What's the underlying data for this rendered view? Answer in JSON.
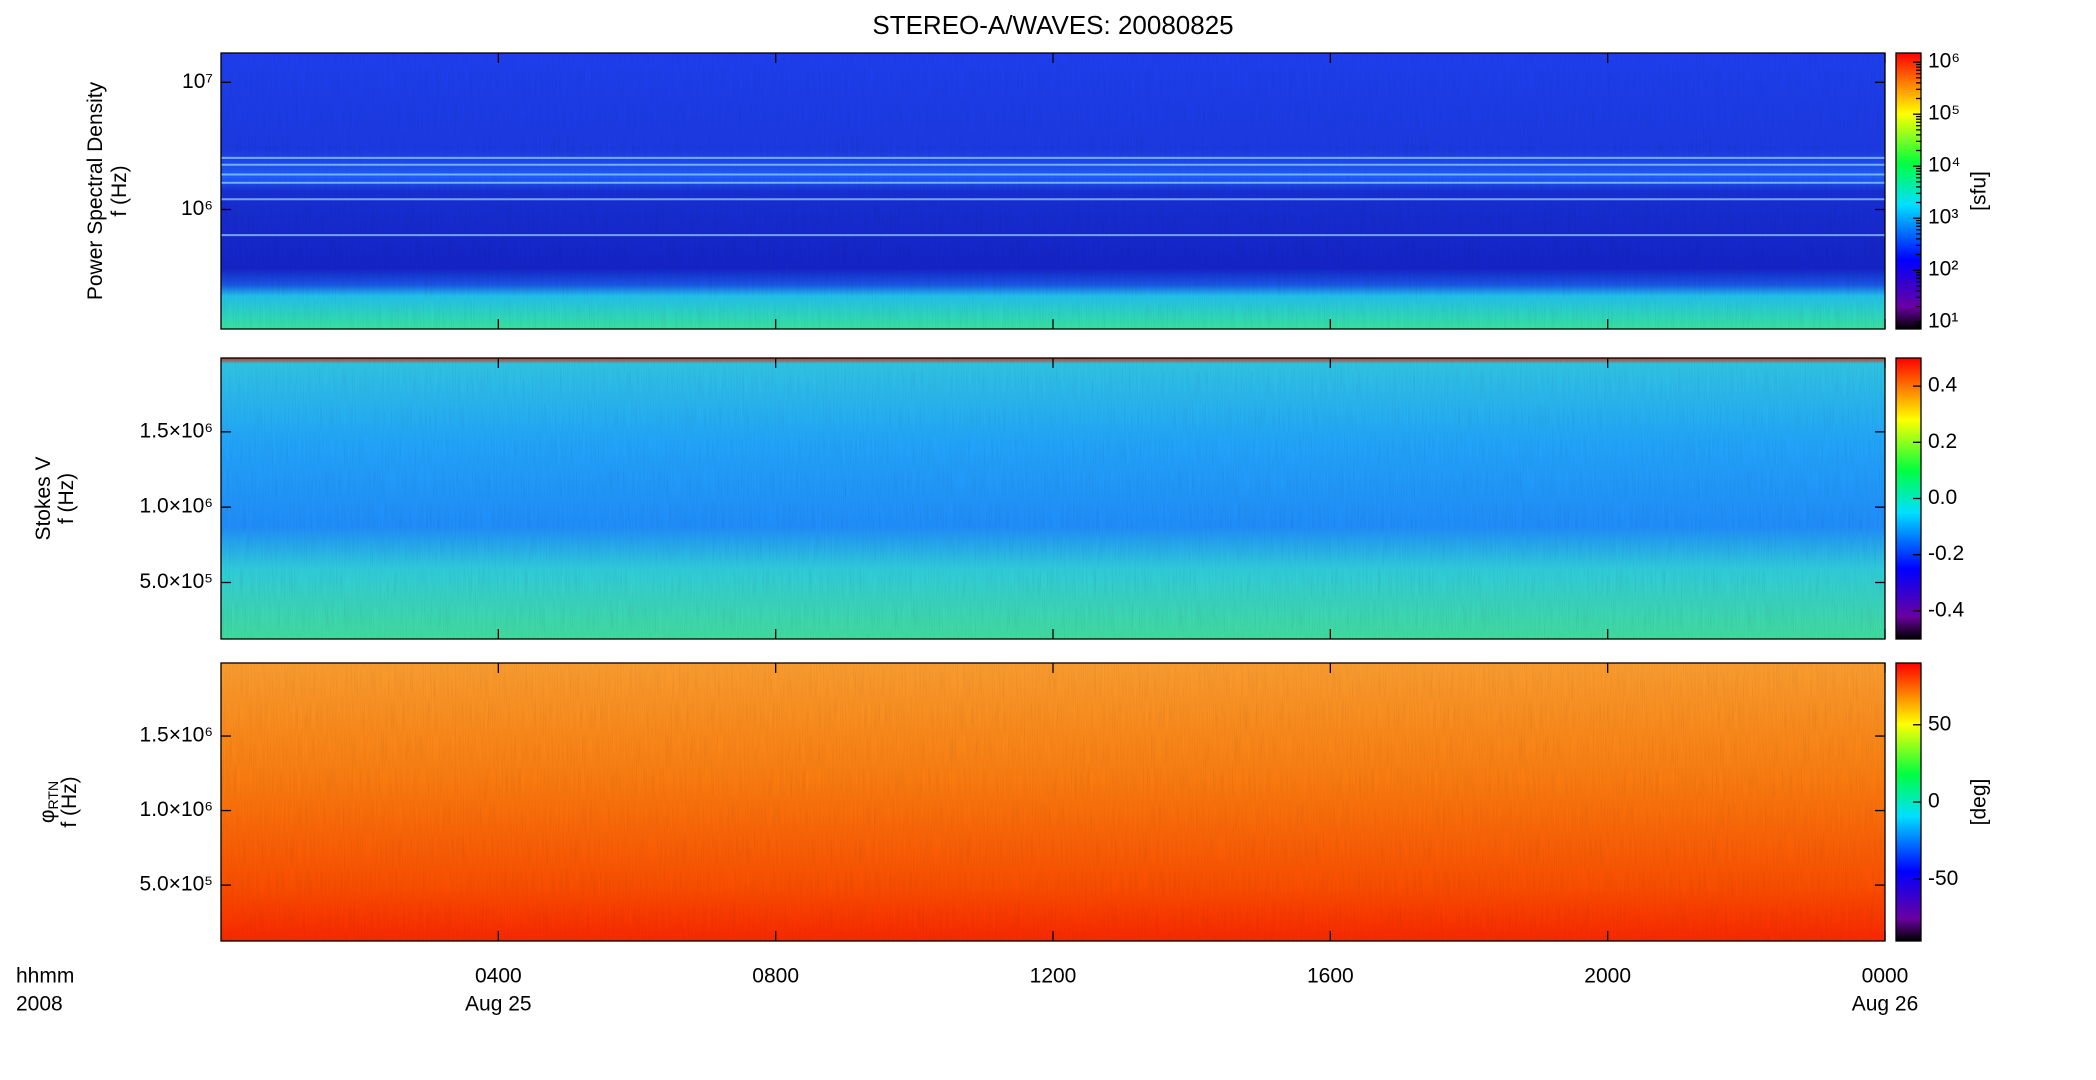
{
  "chart_data": [
    {
      "type": "spectrogram",
      "title": "STEREO-A/WAVES: 20080825",
      "ylabel": [
        "Power Spectral Density",
        "f (Hz)"
      ],
      "ylog": true,
      "ylim": [
        115000,
        17000000
      ],
      "yticks": [
        {
          "value": 1000000,
          "label": "10⁶"
        },
        {
          "value": 10000000,
          "label": "10⁷"
        }
      ],
      "colorbar": {
        "label": "[sfu]",
        "log": true,
        "lim": [
          7.4,
          1500000
        ],
        "ticks": [
          {
            "value": 10,
            "label": "10¹"
          },
          {
            "value": 100,
            "label": "10²"
          },
          {
            "value": 1000,
            "label": "10³"
          },
          {
            "value": 10000,
            "label": "10⁴"
          },
          {
            "value": 100000,
            "label": "10⁵"
          },
          {
            "value": 1000000,
            "label": "10⁶"
          }
        ]
      }
    },
    {
      "type": "spectrogram",
      "ylabel": [
        "Stokes V",
        "f (Hz)"
      ],
      "ylog": false,
      "ylim": [
        125000,
        1990000
      ],
      "yticks": [
        {
          "value": 500000,
          "label": "5.0×10⁵"
        },
        {
          "value": 1000000,
          "label": "1.0×10⁶"
        },
        {
          "value": 1500000,
          "label": "1.5×10⁶"
        }
      ],
      "colorbar": {
        "log": false,
        "lim": [
          -0.5,
          0.5
        ],
        "ticks": [
          -0.4,
          -0.2,
          {
            "value": 0,
            "label": "0.0"
          },
          0.2,
          0.4
        ]
      }
    },
    {
      "type": "spectrogram",
      "ylabel": [
        "φ",
        "f (Hz)"
      ],
      "ylabel_subscript": "RTN",
      "ylog": false,
      "ylim": [
        125000,
        1990000
      ],
      "yticks": [
        {
          "value": 500000,
          "label": "5.0×10⁵"
        },
        {
          "value": 1000000,
          "label": "1.0×10⁶"
        },
        {
          "value": 1500000,
          "label": "1.5×10⁶"
        }
      ],
      "colorbar": {
        "label": "[deg]",
        "log": false,
        "lim": [
          -90,
          90
        ],
        "ticks": [
          -50,
          0,
          50
        ]
      },
      "xlabel": [
        "hhmm",
        "2008"
      ],
      "xlim": [
        0,
        24
      ],
      "xticks": [
        {
          "value": 4,
          "label": "0400"
        },
        {
          "value": 8,
          "label": "0800"
        },
        {
          "value": 12,
          "label": "1200"
        },
        {
          "value": 16,
          "label": "1600"
        },
        {
          "value": 20,
          "label": "2000"
        },
        {
          "value": 24,
          "label": "0000"
        }
      ],
      "date_labels": [
        {
          "value": 4,
          "label": "Aug 25"
        },
        {
          "value": 24,
          "label": "Aug 26"
        }
      ]
    }
  ]
}
